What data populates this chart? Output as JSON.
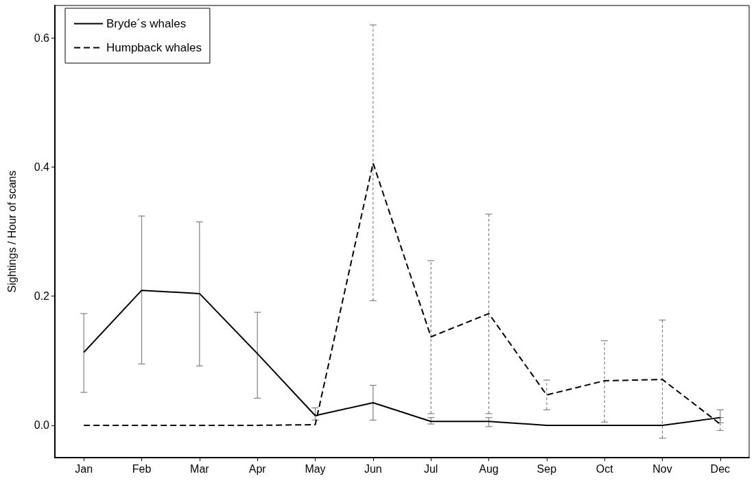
{
  "chart_data": {
    "type": "line",
    "ylabel": "Sightings / Hour of scans",
    "categories": [
      "Jan",
      "Feb",
      "Mar",
      "Apr",
      "May",
      "Jun",
      "Jul",
      "Aug",
      "Sep",
      "Oct",
      "Nov",
      "Dec"
    ],
    "series": [
      {
        "name": "Bryde´s whales",
        "color": "#000000",
        "line_style": "solid",
        "values": [
          0.113,
          0.209,
          0.204,
          0.111,
          0.015,
          0.035,
          0.006,
          0.006,
          0,
          0,
          0,
          0.012
        ],
        "errors": [
          [
            0.051,
            0.173
          ],
          [
            0.095,
            0.324
          ],
          [
            0.092,
            0.315
          ],
          [
            0.042,
            0.175
          ],
          [
            0.008,
            0.027
          ],
          [
            0.008,
            0.062
          ],
          [
            0.002,
            0.012
          ],
          [
            -0.002,
            0.012
          ],
          null,
          null,
          null,
          [
            0.004,
            0.024
          ]
        ]
      },
      {
        "name": "Humpback whales",
        "color": "#000000",
        "line_style": "dashed",
        "values": [
          0,
          0,
          0,
          0,
          0.001,
          0.406,
          0.137,
          0.173,
          0.047,
          0.069,
          0.071,
          0.002
        ],
        "errors": [
          null,
          null,
          null,
          null,
          null,
          [
            0.193,
            0.62
          ],
          [
            0.018,
            0.255
          ],
          [
            0.018,
            0.327
          ],
          [
            0.024,
            0.07
          ],
          [
            0.005,
            0.131
          ],
          [
            -0.02,
            0.163
          ],
          [
            -0.008,
            0.012
          ]
        ]
      }
    ],
    "ylim": [
      -0.05,
      0.65
    ],
    "yticks": [
      {
        "value": 0,
        "label": "0.0"
      },
      {
        "value": 0.2,
        "label": "0.2"
      },
      {
        "value": 0.4,
        "label": "0.4"
      },
      {
        "value": 0.6,
        "label": "0.6"
      }
    ],
    "grid": false,
    "legend": "top left",
    "marker": "none"
  }
}
